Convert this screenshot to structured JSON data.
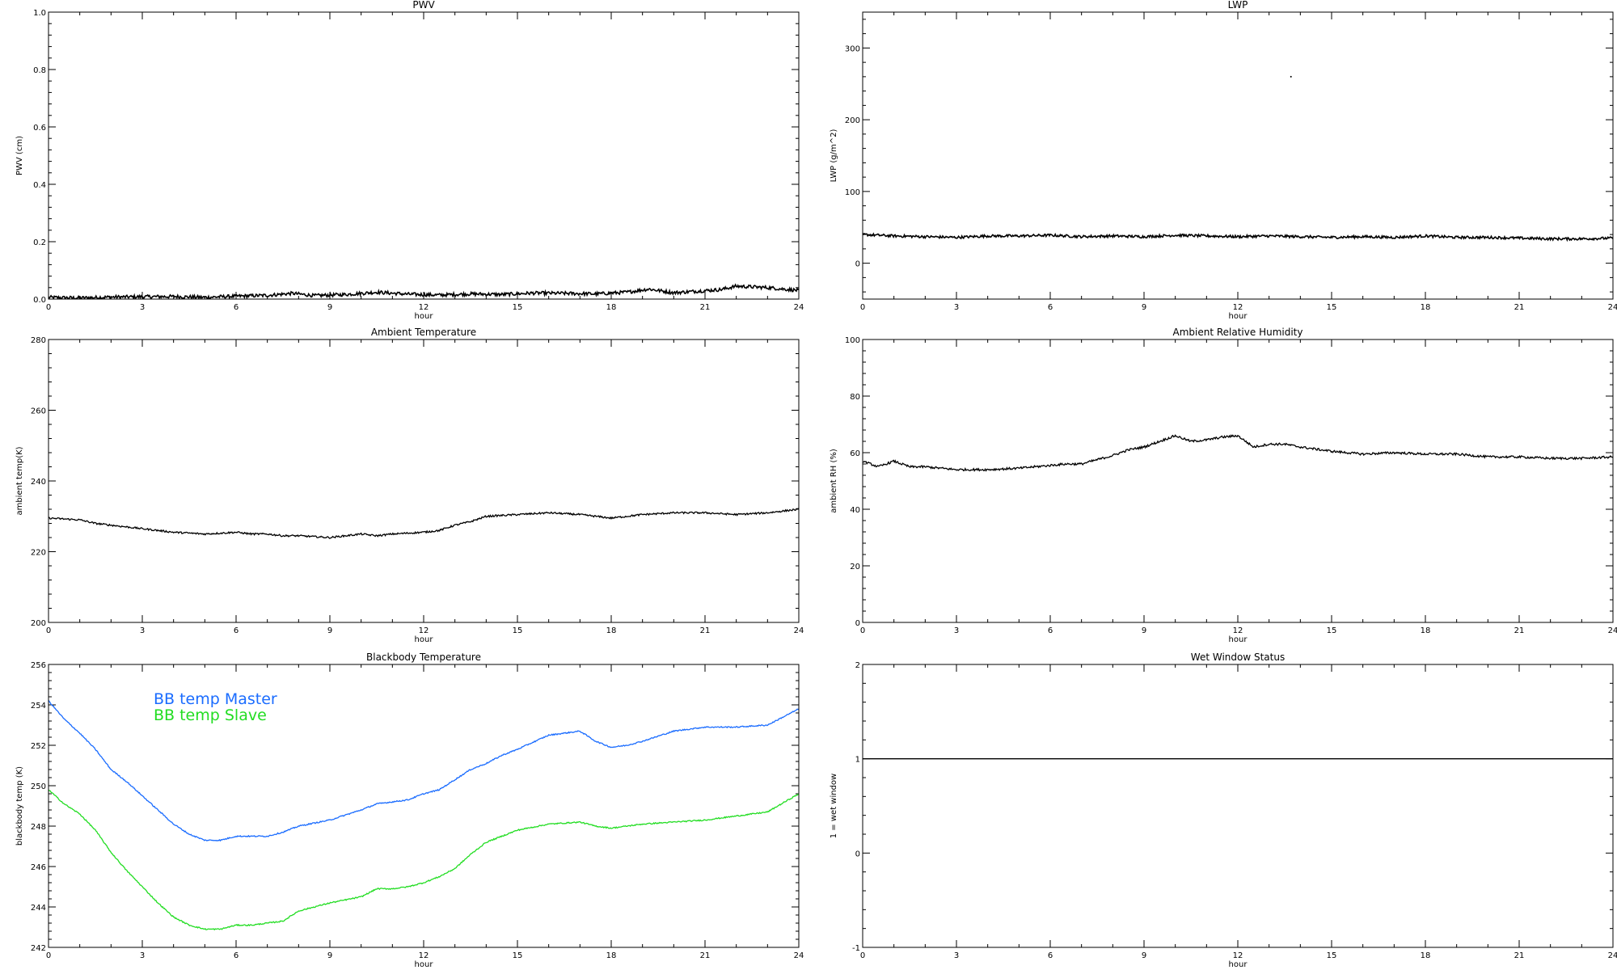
{
  "chart_data": [
    {
      "type": "line",
      "title": "PWV",
      "xlabel": "hour",
      "ylabel": "PWV (cm)",
      "xlim": [
        0,
        24
      ],
      "ylim": [
        0,
        1
      ],
      "xticks": [
        0,
        3,
        6,
        9,
        12,
        15,
        18,
        21,
        24
      ],
      "xtick_labels": [
        "0",
        "3",
        "6",
        "9",
        "12",
        "15",
        "18",
        "21",
        "24"
      ],
      "yticks": [
        0,
        0.2,
        0.4,
        0.6,
        0.8,
        1.0
      ],
      "ytick_labels": [
        "0.0",
        "0.2",
        "0.4",
        "0.6",
        "0.8",
        "1.0"
      ],
      "noise": 0.006,
      "series": [
        {
          "name": "",
          "color": "#000000",
          "x": [
            0,
            1,
            2,
            3,
            4,
            5,
            6,
            7,
            7.8,
            8.5,
            9.5,
            10.5,
            11.5,
            12.5,
            13.5,
            14.5,
            15.5,
            16.5,
            17.5,
            18.5,
            19.2,
            20,
            20.8,
            21.5,
            22,
            23,
            24
          ],
          "y": [
            0.006,
            0.004,
            0.007,
            0.008,
            0.009,
            0.006,
            0.01,
            0.013,
            0.02,
            0.012,
            0.016,
            0.024,
            0.017,
            0.014,
            0.018,
            0.016,
            0.021,
            0.02,
            0.018,
            0.024,
            0.035,
            0.022,
            0.028,
            0.033,
            0.045,
            0.04,
            0.03
          ]
        }
      ]
    },
    {
      "type": "line",
      "title": "LWP",
      "xlabel": "hour",
      "ylabel": "LWP (g/m^2)",
      "xlim": [
        0,
        24
      ],
      "ylim": [
        -50,
        350
      ],
      "xticks": [
        0,
        3,
        6,
        9,
        12,
        15,
        18,
        21,
        24
      ],
      "xtick_labels": [
        "0",
        "3",
        "6",
        "9",
        "12",
        "15",
        "18",
        "21",
        "24"
      ],
      "yticks": [
        0,
        100,
        200,
        300
      ],
      "ytick_labels": [
        "0",
        "100",
        "200",
        "300"
      ],
      "noise": 1.8,
      "series": [
        {
          "name": "",
          "color": "#000000",
          "x": [
            0,
            1,
            2,
            3,
            4,
            5,
            6,
            7,
            8,
            9,
            10,
            11,
            12,
            13,
            14,
            15,
            16,
            17,
            18,
            19,
            20,
            21,
            22,
            23,
            24
          ],
          "y": [
            40,
            38,
            37,
            36,
            38,
            38,
            39,
            37,
            38,
            37,
            39,
            38,
            37,
            38,
            37,
            36,
            37,
            36,
            38,
            36,
            36,
            35,
            34,
            34,
            35
          ]
        }
      ],
      "points": [
        {
          "x": 13.7,
          "y": 260
        }
      ]
    },
    {
      "type": "line",
      "title": "Ambient Temperature",
      "xlabel": "hour",
      "ylabel": "ambient temp(K)",
      "xlim": [
        0,
        24
      ],
      "ylim": [
        200,
        280
      ],
      "xticks": [
        0,
        3,
        6,
        9,
        12,
        15,
        18,
        21,
        24
      ],
      "xtick_labels": [
        "0",
        "3",
        "6",
        "9",
        "12",
        "15",
        "18",
        "21",
        "24"
      ],
      "yticks": [
        200,
        220,
        240,
        260,
        280
      ],
      "ytick_labels": [
        "200",
        "220",
        "240",
        "260",
        "280"
      ],
      "noise": 0.25,
      "series": [
        {
          "name": "",
          "color": "#000000",
          "x": [
            0,
            1,
            1.5,
            2,
            3,
            4,
            5,
            6,
            6.5,
            7,
            7.5,
            8,
            9,
            10,
            10.5,
            11,
            12,
            12.5,
            13,
            13.5,
            14,
            15,
            16,
            17,
            18,
            19,
            20,
            21,
            22,
            23,
            24
          ],
          "y": [
            229.5,
            229,
            228,
            227.5,
            226.5,
            225.5,
            225,
            225.5,
            225,
            225,
            224.5,
            224.5,
            224,
            225,
            224.5,
            225,
            225.5,
            226,
            227.5,
            228.5,
            230,
            230.5,
            231,
            230.5,
            229.5,
            230.5,
            231,
            231,
            230.5,
            231,
            232
          ]
        }
      ]
    },
    {
      "type": "line",
      "title": "Ambient Relative Humidity",
      "xlabel": "hour",
      "ylabel": "ambient RH (%)",
      "xlim": [
        0,
        24
      ],
      "ylim": [
        0,
        100
      ],
      "xticks": [
        0,
        3,
        6,
        9,
        12,
        15,
        18,
        21,
        24
      ],
      "xtick_labels": [
        "0",
        "3",
        "6",
        "9",
        "12",
        "15",
        "18",
        "21",
        "24"
      ],
      "yticks": [
        0,
        20,
        40,
        60,
        80,
        100
      ],
      "ytick_labels": [
        "0",
        "20",
        "40",
        "60",
        "80",
        "100"
      ],
      "noise": 0.4,
      "series": [
        {
          "name": "",
          "color": "#000000",
          "x": [
            0,
            0.5,
            1,
            1.5,
            2,
            3,
            4,
            5,
            6,
            6.5,
            7,
            7.5,
            8,
            8.5,
            9,
            9.5,
            10,
            10.5,
            11,
            11.5,
            12,
            12.5,
            13,
            13.5,
            14,
            15,
            16,
            17,
            18,
            19,
            20,
            21,
            22,
            23,
            24
          ],
          "y": [
            57,
            55,
            57,
            55,
            55,
            54,
            54,
            54.5,
            55.5,
            56,
            56,
            57.5,
            59,
            61,
            62,
            64,
            66,
            64,
            64.5,
            65.5,
            66,
            62,
            63,
            63,
            62,
            60.5,
            59.5,
            60,
            59.5,
            59.5,
            58.5,
            58.5,
            58,
            58,
            58.5
          ]
        }
      ]
    },
    {
      "type": "line",
      "title": "Blackbody Temperature",
      "xlabel": "hour",
      "ylabel": "blackbody temp (K)",
      "xlim": [
        0,
        24
      ],
      "ylim": [
        242,
        256
      ],
      "xticks": [
        0,
        3,
        6,
        9,
        12,
        15,
        18,
        21,
        24
      ],
      "xtick_labels": [
        "0",
        "3",
        "6",
        "9",
        "12",
        "15",
        "18",
        "21",
        "24"
      ],
      "yticks": [
        242,
        244,
        246,
        248,
        250,
        252,
        254,
        256
      ],
      "ytick_labels": [
        "242",
        "244",
        "246",
        "248",
        "250",
        "252",
        "254",
        "256"
      ],
      "noise": 0.03,
      "legend": "top-left",
      "series": [
        {
          "name": "BB temp Master",
          "color": "#1a6cff",
          "x": [
            0,
            0.5,
            1,
            1.5,
            2,
            2.5,
            3,
            3.5,
            4,
            4.5,
            5,
            5.5,
            6,
            6.5,
            7,
            7.5,
            8,
            9,
            10,
            10.5,
            11,
            11.5,
            12,
            12.5,
            13,
            13.5,
            14,
            14.5,
            15,
            16,
            17,
            17.5,
            18,
            18.5,
            19,
            20,
            21,
            22,
            23,
            24
          ],
          "y": [
            254.2,
            253.3,
            252.6,
            251.8,
            250.8,
            250.2,
            249.5,
            248.8,
            248.1,
            247.6,
            247.3,
            247.3,
            247.5,
            247.5,
            247.5,
            247.7,
            248.0,
            248.3,
            248.8,
            249.1,
            249.2,
            249.3,
            249.6,
            249.8,
            250.3,
            250.8,
            251.1,
            251.5,
            251.8,
            252.5,
            252.7,
            252.2,
            251.9,
            252.0,
            252.2,
            252.7,
            252.9,
            252.9,
            253.0,
            253.8
          ]
        },
        {
          "name": "BB temp Slave",
          "color": "#22dd22",
          "x": [
            0,
            0.5,
            1,
            1.5,
            2,
            2.5,
            3,
            3.5,
            4,
            4.5,
            5,
            5.5,
            6,
            6.5,
            7,
            7.5,
            8,
            9,
            10,
            10.5,
            11,
            11.5,
            12,
            12.5,
            13,
            13.5,
            14,
            14.5,
            15,
            16,
            17,
            17.5,
            18,
            18.5,
            19,
            20,
            21,
            22,
            23,
            24
          ],
          "y": [
            249.8,
            249.1,
            248.6,
            247.8,
            246.7,
            245.8,
            245.0,
            244.2,
            243.5,
            243.1,
            242.9,
            242.9,
            243.1,
            243.1,
            243.2,
            243.3,
            243.8,
            244.2,
            244.5,
            244.9,
            244.9,
            245.0,
            245.2,
            245.5,
            245.9,
            246.6,
            247.2,
            247.5,
            247.8,
            248.1,
            248.2,
            248.0,
            247.9,
            248.0,
            248.1,
            248.2,
            248.3,
            248.5,
            248.7,
            249.6
          ]
        }
      ]
    },
    {
      "type": "line",
      "title": "Wet Window Status",
      "xlabel": "hour",
      "ylabel": "1 = wet window",
      "xlim": [
        0,
        24
      ],
      "ylim": [
        -1,
        2
      ],
      "xticks": [
        0,
        3,
        6,
        9,
        12,
        15,
        18,
        21,
        24
      ],
      "xtick_labels": [
        "0",
        "3",
        "6",
        "9",
        "12",
        "15",
        "18",
        "21",
        "24"
      ],
      "yticks": [
        -1,
        0,
        1,
        2
      ],
      "ytick_labels": [
        "-1",
        "0",
        "1",
        "2"
      ],
      "noise": 0,
      "series": [
        {
          "name": "",
          "color": "#000000",
          "x": [
            0,
            24
          ],
          "y": [
            1,
            1
          ]
        }
      ]
    }
  ]
}
